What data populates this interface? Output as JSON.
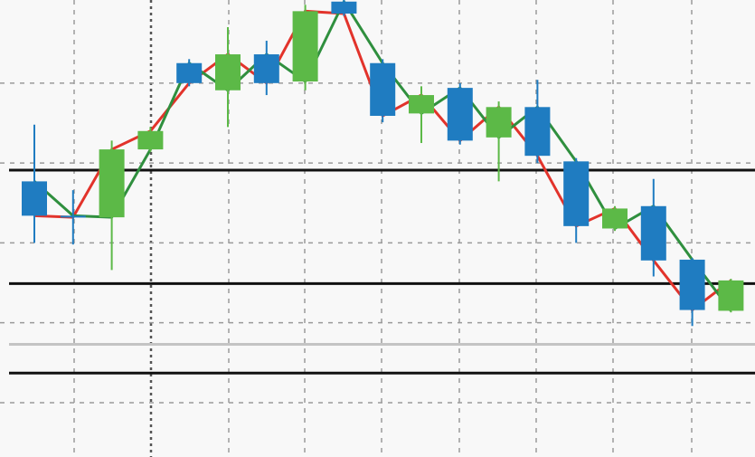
{
  "chart_data": {
    "type": "candlestick",
    "categories": [
      null,
      null,
      null,
      null,
      null,
      null,
      null,
      null,
      null,
      null,
      null,
      null,
      null,
      null,
      null,
      null,
      null,
      null,
      null
    ],
    "open": [
      3.77,
      3.34,
      3.32,
      4.17,
      5.25,
      4.91,
      5.36,
      5.02,
      6.02,
      5.25,
      4.62,
      4.94,
      4.32,
      4.7,
      4.02,
      3.18,
      3.46,
      2.79,
      2.15
    ],
    "high": [
      4.48,
      3.66,
      4.28,
      4.45,
      5.3,
      5.7,
      5.53,
      5.98,
      6.04,
      5.3,
      4.96,
      5.0,
      4.77,
      5.04,
      4.06,
      3.46,
      3.8,
      2.81,
      2.55
    ],
    "low": [
      3.0,
      2.98,
      2.66,
      4.14,
      4.96,
      4.45,
      4.85,
      4.91,
      5.84,
      4.51,
      4.25,
      4.23,
      3.77,
      4.0,
      3.0,
      3.15,
      2.58,
      1.96,
      2.13
    ],
    "close": [
      3.34,
      3.32,
      4.17,
      4.4,
      5.0,
      5.36,
      5.0,
      5.9,
      5.87,
      4.59,
      4.85,
      4.28,
      4.7,
      4.09,
      3.21,
      3.43,
      2.78,
      2.16,
      2.53
    ],
    "up_color": "#5cb947",
    "down_color": "#1f7cc1",
    "close_line_color": "#e2332b",
    "open_line_color": "#2f8f3e",
    "ylim": [
      0.32,
      6.04
    ],
    "yticks": [
      1,
      2,
      3,
      4,
      5
    ],
    "grid": true,
    "hlines": [
      {
        "value": 3.91,
        "color": "#111111"
      },
      {
        "value": 2.49,
        "color": "#111111"
      },
      {
        "value": 1.73,
        "color": "#c4c4c4"
      },
      {
        "value": 1.37,
        "color": "#111111"
      }
    ]
  }
}
